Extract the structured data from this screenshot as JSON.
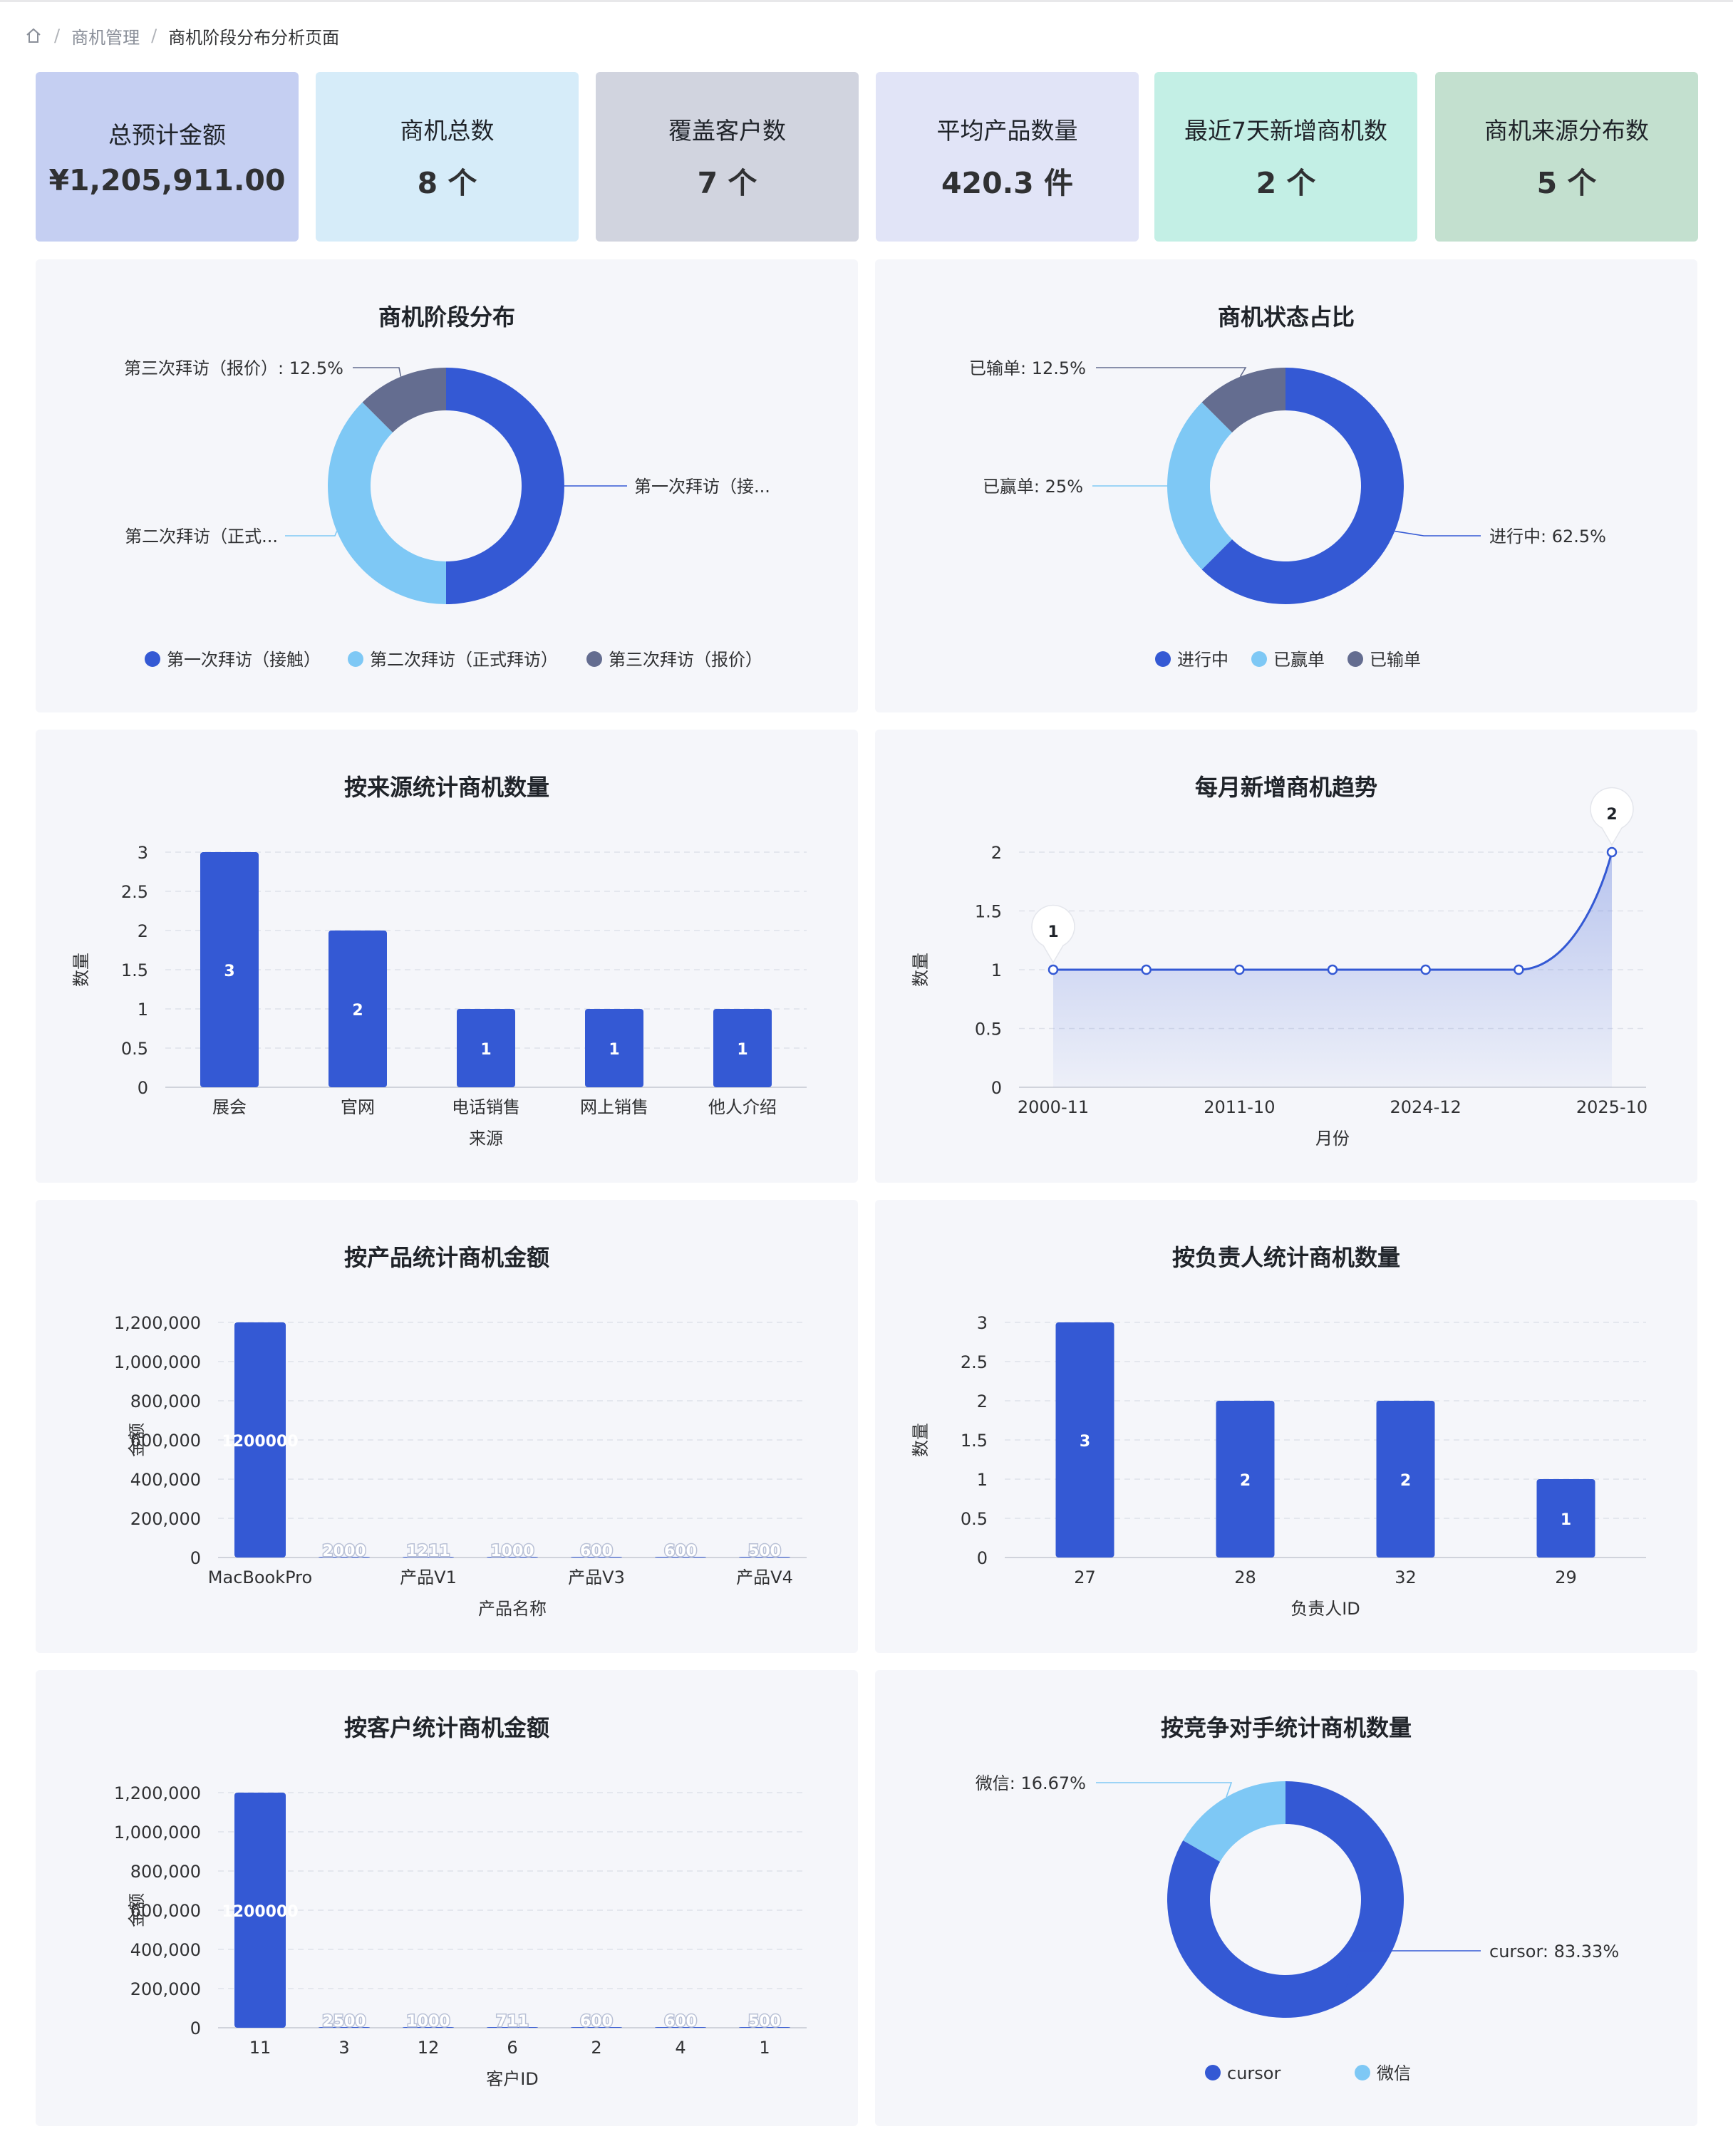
{
  "breadcrumb": {
    "parent": "商机管理",
    "current": "商机阶段分布分析页面",
    "separator": "/"
  },
  "stats": [
    {
      "label": "总预计金额",
      "value": "¥1,205,911.00",
      "bg": "#c5cff2"
    },
    {
      "label": "商机总数",
      "value": "8 个",
      "bg": "#d6ecf9"
    },
    {
      "label": "覆盖客户数",
      "value": "7 个",
      "bg": "#d1d4df"
    },
    {
      "label": "平均产品数量",
      "value": "420.3 件",
      "bg": "#e1e4f7"
    },
    {
      "label": "最近7天新增商机数",
      "value": "2 个",
      "bg": "#c3efe5"
    },
    {
      "label": "商机来源分布数",
      "value": "5 个",
      "bg": "#c3e0cf"
    }
  ],
  "colors": {
    "primary": "#3459d4",
    "light": "#7ec8f5",
    "slate": "#646d90"
  },
  "charts": {
    "stage": {
      "title": "商机阶段分布",
      "chart_data": {
        "type": "pie",
        "series": [
          {
            "name": "第一次拜访（接触）",
            "value": 50,
            "color": "#3459d4",
            "label": "第一次拜访（接..."
          },
          {
            "name": "第二次拜访（正式拜访）",
            "value": 37.5,
            "color": "#7ec8f5",
            "label": "第二次拜访（正式..."
          },
          {
            "name": "第三次拜访（报价）",
            "value": 12.5,
            "color": "#646d90",
            "label": "第三次拜访（报价）: 12.5%"
          }
        ]
      }
    },
    "status": {
      "title": "商机状态占比",
      "chart_data": {
        "type": "pie",
        "series": [
          {
            "name": "进行中",
            "value": 62.5,
            "color": "#3459d4",
            "label": "进行中: 62.5%"
          },
          {
            "name": "已赢单",
            "value": 25,
            "color": "#7ec8f5",
            "label": "已赢单: 25%"
          },
          {
            "name": "已输单",
            "value": 12.5,
            "color": "#646d90",
            "label": "已输单: 12.5%"
          }
        ]
      }
    },
    "source": {
      "title": "按来源统计商机数量",
      "chart_data": {
        "type": "bar",
        "categories": [
          "展会",
          "官网",
          "电话销售",
          "网上销售",
          "他人介绍"
        ],
        "values": [
          3,
          2,
          1,
          1,
          1
        ],
        "data_labels": [
          "3",
          "2",
          "1",
          "1",
          "1"
        ],
        "yticks": [
          "0",
          "0.5",
          "1",
          "1.5",
          "2",
          "2.5",
          "3"
        ],
        "ylim": [
          0,
          3
        ],
        "xlabel": "来源",
        "ylabel": "数量"
      }
    },
    "monthly": {
      "title": "每月新增商机趋势",
      "chart_data": {
        "type": "line",
        "x": [
          "2000-11",
          "",
          "2011-10",
          "",
          "2024-12",
          "",
          "2025-10"
        ],
        "xticks": [
          "2000-11",
          "2011-10",
          "2024-12",
          "2025-10"
        ],
        "values": [
          1,
          1,
          1,
          1,
          1,
          1,
          2
        ],
        "markers": [
          "1",
          "2"
        ],
        "yticks": [
          "0",
          "0.5",
          "1",
          "1.5",
          "2"
        ],
        "ylim": [
          0,
          2
        ],
        "xlabel": "月份",
        "ylabel": "数量"
      }
    },
    "product": {
      "title": "按产品统计商机金额",
      "chart_data": {
        "type": "bar",
        "categories": [
          "MacBookPro",
          "",
          "产品V1",
          "",
          "产品V3",
          "",
          "产品V4"
        ],
        "values": [
          1200000,
          2000,
          1211,
          1000,
          600,
          600,
          500
        ],
        "data_labels": [
          "1200000",
          "2000",
          "1211",
          "1000",
          "600",
          "600",
          "500"
        ],
        "yticks": [
          "0",
          "200,000",
          "400,000",
          "600,000",
          "800,000",
          "1,000,000",
          "1,200,000"
        ],
        "ylim": [
          0,
          1200000
        ],
        "xlabel": "产品名称",
        "ylabel": "金额"
      }
    },
    "owner": {
      "title": "按负责人统计商机数量",
      "chart_data": {
        "type": "bar",
        "categories": [
          "27",
          "28",
          "32",
          "29"
        ],
        "values": [
          3,
          2,
          2,
          1
        ],
        "data_labels": [
          "3",
          "2",
          "2",
          "1"
        ],
        "yticks": [
          "0",
          "0.5",
          "1",
          "1.5",
          "2",
          "2.5",
          "3"
        ],
        "ylim": [
          0,
          3
        ],
        "xlabel": "负责人ID",
        "ylabel": "数量"
      }
    },
    "customer": {
      "title": "按客户统计商机金额",
      "chart_data": {
        "type": "bar",
        "categories": [
          "11",
          "3",
          "12",
          "6",
          "2",
          "4",
          "1"
        ],
        "values": [
          1200000,
          2500,
          1000,
          711,
          600,
          600,
          500
        ],
        "data_labels": [
          "1200000",
          "2500",
          "1000",
          "711",
          "600",
          "600",
          "500"
        ],
        "yticks": [
          "0",
          "200,000",
          "400,000",
          "600,000",
          "800,000",
          "1,000,000",
          "1,200,000"
        ],
        "ylim": [
          0,
          1200000
        ],
        "xlabel": "客户ID",
        "ylabel": "金额"
      }
    },
    "competitor": {
      "title": "按竞争对手统计商机数量",
      "chart_data": {
        "type": "pie",
        "series": [
          {
            "name": "cursor",
            "value": 83.33,
            "color": "#3459d4",
            "label": "cursor: 83.33%"
          },
          {
            "name": "微信",
            "value": 16.67,
            "color": "#7ec8f5",
            "label": "微信: 16.67%"
          }
        ]
      }
    }
  }
}
